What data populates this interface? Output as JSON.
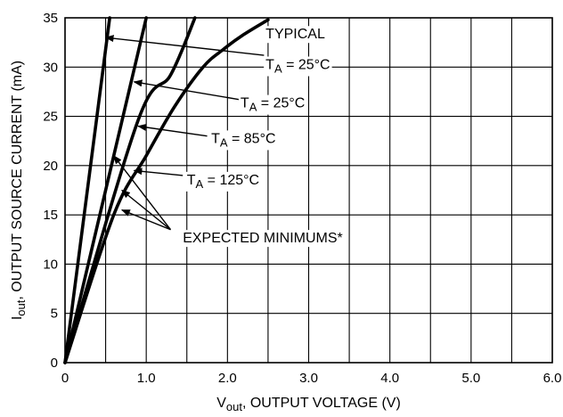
{
  "chart_data": {
    "type": "line",
    "xlabel": {
      "main": "V",
      "sub": "out",
      "rest": ", OUTPUT VOLTAGE (V)"
    },
    "ylabel": {
      "main": "I",
      "sub": "out",
      "rest": ", OUTPUT SOURCE CURRENT (mA)"
    },
    "xlim": [
      0,
      6.0
    ],
    "ylim": [
      0,
      35
    ],
    "x_ticks": [
      0,
      1.0,
      2.0,
      3.0,
      4.0,
      5.0,
      6.0
    ],
    "x_tick_labels": [
      "0",
      "1.0",
      "2.0",
      "3.0",
      "4.0",
      "5.0",
      "6.0"
    ],
    "y_ticks": [
      0,
      5,
      10,
      15,
      20,
      25,
      30,
      35
    ],
    "y_tick_labels": [
      "0",
      "5",
      "10",
      "15",
      "20",
      "25",
      "30",
      "35"
    ],
    "x_minor_step": 0.5,
    "grid": true,
    "series": [
      {
        "points": [
          [
            0,
            0
          ],
          [
            0.55,
            35
          ]
        ]
      },
      {
        "points": [
          [
            0,
            0
          ],
          [
            1.0,
            35
          ]
        ]
      },
      {
        "points": [
          [
            0,
            0
          ],
          [
            0.9,
            24.6
          ],
          [
            1.3,
            29.2
          ],
          [
            1.6,
            35
          ]
        ]
      },
      {
        "points": [
          [
            0,
            0
          ],
          [
            0.6,
            15
          ],
          [
            1.0,
            21
          ],
          [
            1.35,
            26
          ],
          [
            1.7,
            30
          ],
          [
            1.95,
            31.8
          ],
          [
            2.2,
            33.3
          ],
          [
            2.5,
            34.8
          ]
        ]
      }
    ],
    "annotations": [
      {
        "id": "typical",
        "lines": [
          "TYPICAL"
        ],
        "text_at": [
          2.47,
          32.9
        ]
      },
      {
        "id": "typ-25",
        "main": "T",
        "sub": "A",
        "rest": " = 25°C",
        "text_at": [
          2.47,
          29.8
        ],
        "arrow_from": [
          2.45,
          31.2
        ],
        "arrow_to": [
          0.5,
          33.0
        ]
      },
      {
        "id": "ta-25",
        "main": "T",
        "sub": "A",
        "rest": " = 25°C",
        "text_at": [
          2.16,
          25.9
        ],
        "arrow_from": [
          2.15,
          26.7
        ],
        "arrow_to": [
          0.85,
          28.5
        ]
      },
      {
        "id": "ta-85",
        "main": "T",
        "sub": "A",
        "rest": " = 85°C",
        "text_at": [
          1.8,
          22.3
        ],
        "arrow_from": [
          1.75,
          23.0
        ],
        "arrow_to": [
          0.9,
          24.0
        ]
      },
      {
        "id": "ta-125",
        "main": "T",
        "sub": "A",
        "rest": " = 125°C",
        "text_at": [
          1.5,
          18.1
        ],
        "arrow_from": [
          1.45,
          19.0
        ],
        "arrow_to": [
          0.85,
          19.5
        ]
      },
      {
        "id": "expected",
        "text": "EXPECTED MINIMUMS*",
        "text_at": [
          1.45,
          12.2
        ],
        "arrows_from": [
          1.3,
          13.5
        ],
        "arrows_to": [
          [
            0.6,
            21.0
          ],
          [
            0.7,
            17.5
          ],
          [
            0.7,
            15.5
          ]
        ]
      }
    ]
  }
}
